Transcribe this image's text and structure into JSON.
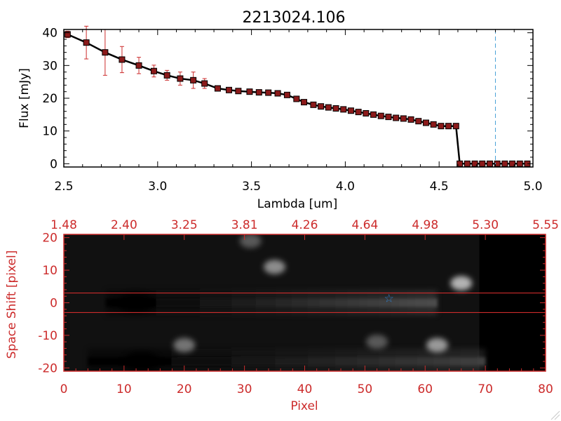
{
  "colors": {
    "background": "#ffffff",
    "axis_black": "#000000",
    "axis_red": "#cc2b2b",
    "errorbar_red": "#cc2b2b",
    "marker_fill": "#8b1a1a",
    "cutoff_line_blue": "#4aa3d8",
    "star_blue": "#2f80d0",
    "image_background": "#000000"
  },
  "chart_data": [
    {
      "type": "line",
      "title": "2213024.106",
      "xlabel": "Lambda [um]",
      "ylabel": "Flux [mJy]",
      "xlim": [
        2.5,
        5.0
      ],
      "ylim": [
        -1,
        41
      ],
      "x_ticks": [
        2.5,
        3.0,
        3.5,
        4.0,
        4.5,
        5.0
      ],
      "x_tick_labels": [
        "2.5",
        "3.0",
        "3.5",
        "4.0",
        "4.5",
        "5.0"
      ],
      "y_ticks": [
        0,
        10,
        20,
        30,
        40
      ],
      "y_tick_labels": [
        "0",
        "10",
        "20",
        "30",
        "40"
      ],
      "vertical_line_x": 4.8,
      "grid": false,
      "series": [
        {
          "x": [
            2.52,
            2.62,
            2.72,
            2.81,
            2.9,
            2.98,
            3.05,
            3.12,
            3.19,
            3.25,
            3.32,
            3.38,
            3.43,
            3.49,
            3.54,
            3.59,
            3.64,
            3.69,
            3.74,
            3.78,
            3.83,
            3.87,
            3.91,
            3.95,
            3.99,
            4.03,
            4.07,
            4.11,
            4.15,
            4.19,
            4.23,
            4.27,
            4.31,
            4.35,
            4.39,
            4.43,
            4.47,
            4.51,
            4.55,
            4.59,
            4.61,
            4.65,
            4.69,
            4.73,
            4.77,
            4.81,
            4.85,
            4.89,
            4.93,
            4.97
          ],
          "y": [
            39.5,
            37.0,
            34.0,
            31.8,
            30.0,
            28.3,
            27.0,
            26.0,
            25.5,
            24.5,
            23.0,
            22.5,
            22.2,
            22.0,
            21.8,
            21.7,
            21.5,
            21.0,
            19.8,
            18.8,
            18.0,
            17.5,
            17.2,
            16.9,
            16.6,
            16.2,
            15.8,
            15.4,
            15.0,
            14.6,
            14.3,
            14.0,
            13.8,
            13.5,
            13.0,
            12.5,
            12.0,
            11.5,
            11.5,
            11.5,
            0.0,
            0.0,
            0.0,
            0.0,
            0.0,
            0.0,
            0.0,
            0.0,
            0.0,
            0.0
          ],
          "yerr": [
            1.0,
            5.0,
            7.0,
            4.0,
            2.5,
            1.8,
            1.5,
            2.0,
            2.5,
            1.5,
            0.8,
            0.5,
            0.5,
            0.5,
            0.5,
            0.5,
            0.5,
            0.5,
            0.5,
            0.5,
            0.5,
            0.5,
            0.5,
            0.5,
            0.5,
            0.5,
            0.5,
            0.5,
            0.5,
            0.5,
            0.5,
            0.5,
            0.5,
            0.5,
            0.5,
            0.5,
            0.5,
            0.5,
            0.5,
            0.5,
            0.3,
            0.3,
            0.3,
            0.3,
            0.3,
            0.3,
            0.3,
            0.3,
            0.3,
            0.3
          ]
        }
      ]
    },
    {
      "type": "heatmap",
      "xlabel": "Pixel",
      "ylabel": "Space Shift [pixel]",
      "xlim": [
        0,
        80
      ],
      "ylim": [
        -21,
        21
      ],
      "x_ticks": [
        0,
        10,
        20,
        30,
        40,
        50,
        60,
        70,
        80
      ],
      "x_tick_labels": [
        "0",
        "10",
        "20",
        "30",
        "40",
        "50",
        "60",
        "70",
        "80"
      ],
      "y_ticks": [
        -20,
        -10,
        0,
        10,
        20
      ],
      "y_tick_labels": [
        "-20",
        "-10",
        "0",
        "10",
        "20"
      ],
      "top_tick_labels": [
        "1.48",
        "2.40",
        "3.25",
        "3.81",
        "4.26",
        "4.64",
        "4.98",
        "5.30",
        "5.55"
      ],
      "extraction_aperture_y": [
        -3,
        3
      ],
      "star_marker": {
        "x": 54,
        "y": 1.5
      },
      "data_extent_x": [
        0,
        69
      ],
      "features": [
        {
          "kind": "spectral_trace",
          "x_start": 7,
          "x_end": 62,
          "y_center": 0,
          "peak_x": 11,
          "peak_brightness": 1.0,
          "end_brightness": 0.3
        },
        {
          "kind": "secondary_trace",
          "x_start": 4,
          "x_end": 70,
          "y_center": -18,
          "peak_x": 12,
          "peak_brightness": 0.85
        },
        {
          "kind": "blob",
          "x": 66,
          "y": 6,
          "brightness": 0.7
        },
        {
          "kind": "blob",
          "x": 35,
          "y": 11,
          "brightness": 0.55
        },
        {
          "kind": "blob",
          "x": 31,
          "y": 19,
          "brightness": 0.35
        },
        {
          "kind": "blob",
          "x": 62,
          "y": -13,
          "brightness": 0.6
        },
        {
          "kind": "blob",
          "x": 20,
          "y": -13,
          "brightness": 0.45
        },
        {
          "kind": "blob",
          "x": 52,
          "y": -12,
          "brightness": 0.35
        }
      ]
    }
  ]
}
